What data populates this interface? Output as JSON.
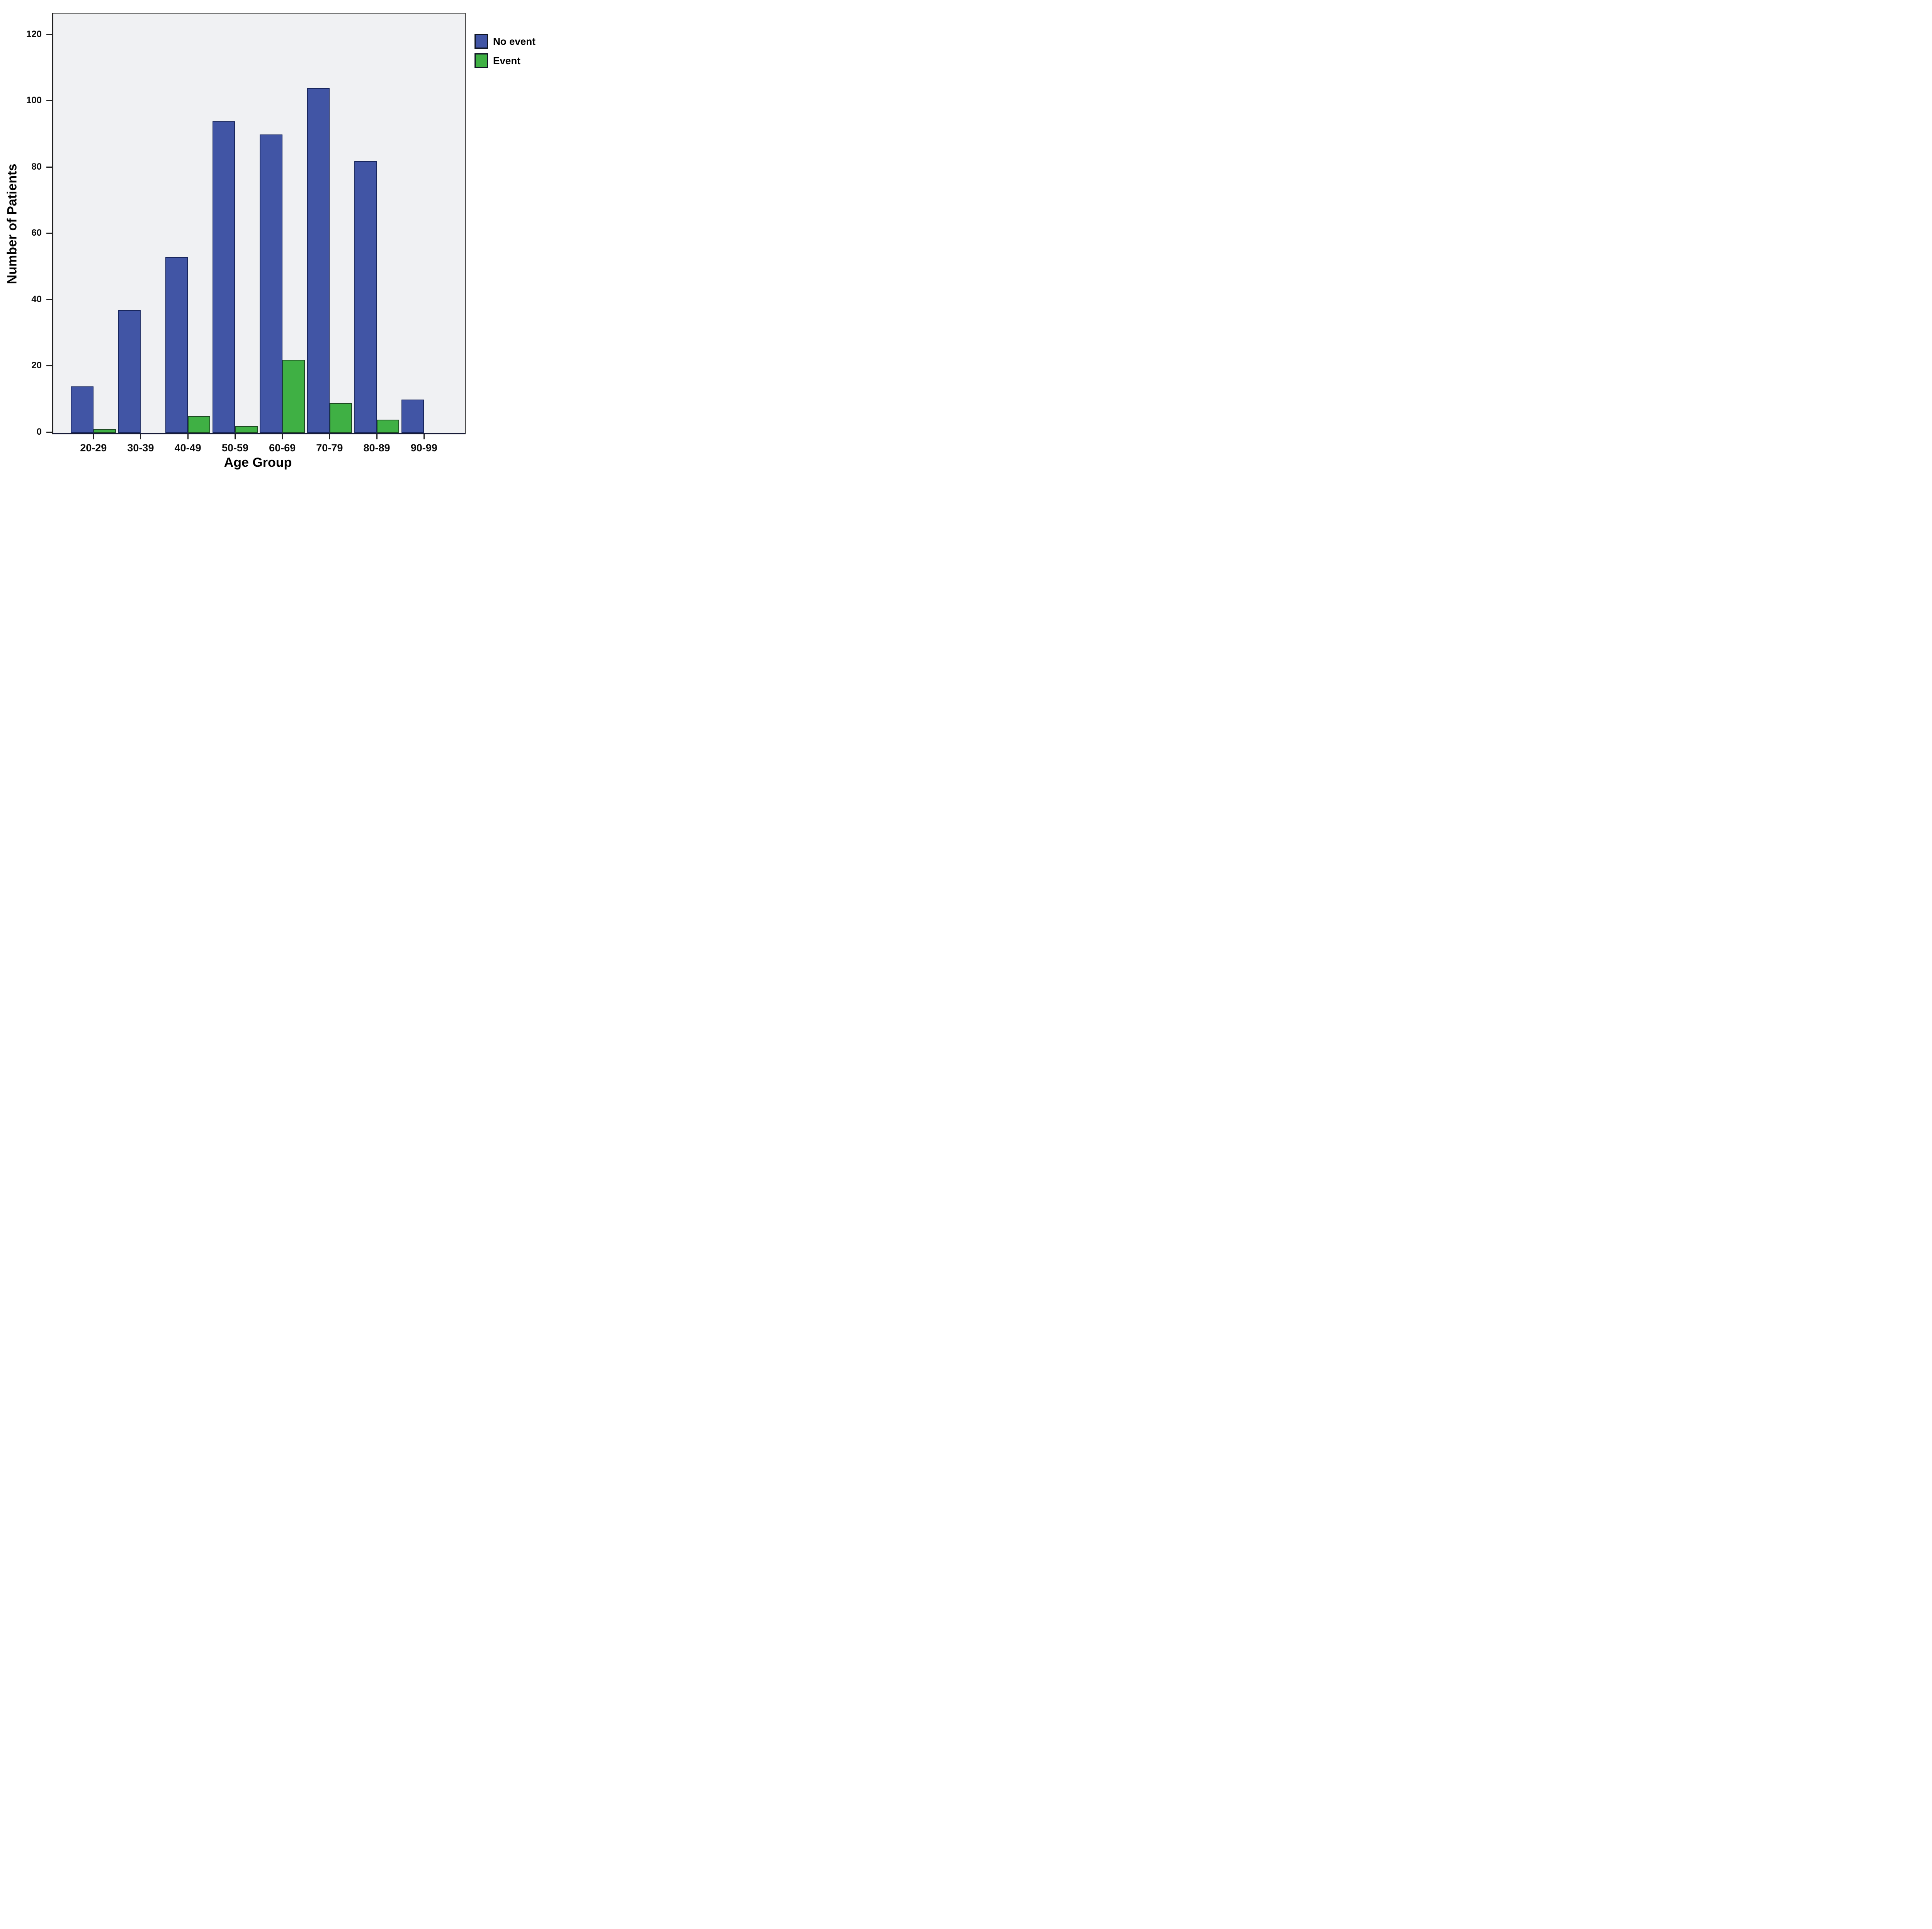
{
  "chart_data": {
    "type": "bar",
    "title": "",
    "xlabel": "Age Group",
    "ylabel": "Number of Patients",
    "categories": [
      "20-29",
      "30-39",
      "40-49",
      "50-59",
      "60-69",
      "70-79",
      "80-89",
      "90-99"
    ],
    "series": [
      {
        "name": "No event",
        "color": "#4155a5",
        "border_color": "#18265e",
        "values": [
          14,
          37,
          53,
          94,
          90,
          104,
          82,
          10
        ]
      },
      {
        "name": "Event",
        "color": "#3fb044",
        "border_color": "#1d4a21",
        "values": [
          1,
          0,
          5,
          2,
          22,
          9,
          4,
          0
        ]
      }
    ],
    "yticks": [
      0,
      20,
      40,
      60,
      80,
      100,
      120
    ],
    "ylim": [
      0,
      126.5
    ],
    "grid": false,
    "legend_position": "top-right",
    "plot_background": "#f0f1f3"
  }
}
